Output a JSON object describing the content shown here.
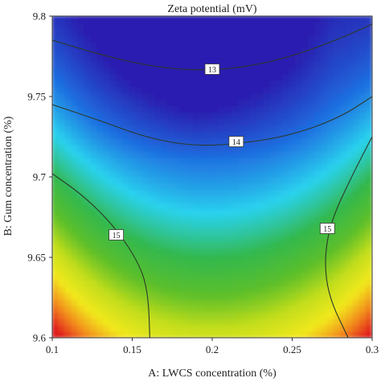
{
  "chart_data": {
    "type": "heatmap",
    "title": "Zeta potential (mV)",
    "xlabel": "A: LWCS concentration (%)",
    "ylabel": "B: Gum concentration (%)",
    "xlim": [
      0.1,
      0.3
    ],
    "ylim": [
      9.6,
      9.8
    ],
    "x_ticks": [
      "0.1",
      "0.15",
      "0.2",
      "0.25",
      "0.3"
    ],
    "y_ticks": [
      "9.6",
      "9.65",
      "9.7",
      "9.75",
      "9.8"
    ],
    "contour_levels": [
      {
        "label": "13",
        "value": 13,
        "label_x": 0.2,
        "label_y": 9.767
      },
      {
        "label": "14",
        "value": 14,
        "label_x": 0.215,
        "label_y": 9.722
      },
      {
        "label": "15",
        "value": 15,
        "label_x": 0.14,
        "label_y": 9.664
      },
      {
        "label": "15",
        "value": 15,
        "label_x": 0.272,
        "label_y": 9.668
      }
    ],
    "contour_lines": [
      {
        "level": 13,
        "points": [
          [
            0.1,
            9.785
          ],
          [
            0.13,
            9.776
          ],
          [
            0.16,
            9.769
          ],
          [
            0.19,
            9.766
          ],
          [
            0.22,
            9.768
          ],
          [
            0.25,
            9.775
          ],
          [
            0.28,
            9.786
          ],
          [
            0.3,
            9.795
          ]
        ]
      },
      {
        "level": 14,
        "points": [
          [
            0.1,
            9.745
          ],
          [
            0.13,
            9.735
          ],
          [
            0.16,
            9.724
          ],
          [
            0.19,
            9.719
          ],
          [
            0.22,
            9.721
          ],
          [
            0.25,
            9.726
          ],
          [
            0.28,
            9.737
          ],
          [
            0.3,
            9.75
          ]
        ]
      },
      {
        "level": 15,
        "points": [
          [
            0.1,
            9.702
          ],
          [
            0.12,
            9.688
          ],
          [
            0.14,
            9.668
          ],
          [
            0.155,
            9.645
          ],
          [
            0.16,
            9.627
          ],
          [
            0.161,
            9.6
          ]
        ]
      },
      {
        "level": 15,
        "points": [
          [
            0.3,
            9.725
          ],
          [
            0.287,
            9.7
          ],
          [
            0.274,
            9.672
          ],
          [
            0.27,
            9.648
          ],
          [
            0.273,
            9.625
          ],
          [
            0.285,
            9.6
          ]
        ]
      }
    ],
    "colorscale": [
      "#2a1fb0",
      "#1e6ee0",
      "#2ad2ee",
      "#33b84d",
      "#5dbf2a",
      "#c4de1a",
      "#f2e81c",
      "#f28a1a",
      "#e01f1f"
    ],
    "grid": false,
    "legend": "none"
  }
}
